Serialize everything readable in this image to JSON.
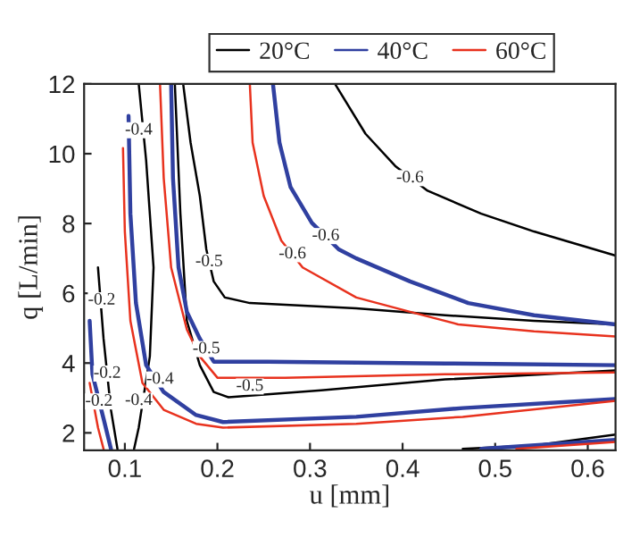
{
  "chart_data": {
    "type": "line",
    "xlabel": "u [mm]",
    "ylabel": "q [L/min]",
    "xlim": [
      0.056,
      0.63
    ],
    "ylim": [
      1.5,
      12
    ],
    "xticks": [
      0.1,
      0.2,
      0.3,
      0.4,
      0.5,
      0.6
    ],
    "yticks": [
      2,
      4,
      6,
      8,
      10,
      12
    ],
    "grid": false,
    "legend": "top",
    "marker": "none",
    "line_style": "solid",
    "series": [
      {
        "name": "20°C",
        "color": "#000000",
        "x": [
          0.327,
          0.36,
          0.392,
          0.427,
          0.485,
          0.542,
          0.63,
          null,
          0.163,
          0.171,
          0.181,
          0.188,
          0.196,
          0.208,
          0.235,
          0.35,
          0.446,
          0.542,
          0.63,
          null,
          0.154,
          0.16,
          0.167,
          0.181,
          0.196,
          0.212,
          0.312,
          0.446,
          0.63,
          null,
          0.115,
          0.123,
          0.131,
          0.127,
          0.115,
          0.11,
          null,
          0.071,
          0.077,
          0.085,
          0.092,
          null,
          0.465,
          0.542,
          0.63
        ],
        "values": [
          12,
          10.57,
          9.65,
          8.94,
          8.28,
          7.77,
          7.08,
          null,
          12,
          10.32,
          8.79,
          7.26,
          6.34,
          5.88,
          5.72,
          5.57,
          5.37,
          5.21,
          5.11,
          null,
          12,
          8.28,
          5.21,
          3.94,
          3.17,
          3.02,
          3.22,
          3.53,
          3.79,
          null,
          12,
          9.81,
          6.74,
          4.19,
          2.15,
          1.54,
          null,
          6.74,
          4.7,
          2.66,
          1.54,
          null,
          1.54,
          1.64,
          1.95
        ]
      },
      {
        "name": "40°C",
        "color": "#3040a0",
        "x": [
          0.26,
          0.267,
          0.279,
          0.302,
          0.331,
          0.35,
          0.408,
          0.471,
          0.542,
          0.63,
          null,
          0.15,
          0.152,
          0.158,
          0.167,
          0.181,
          0.196,
          0.254,
          0.446,
          0.63,
          null,
          0.104,
          0.106,
          0.112,
          0.123,
          0.142,
          0.177,
          0.206,
          0.35,
          0.465,
          0.63,
          null,
          0.062,
          0.065,
          0.077,
          0.085,
          null,
          0.485,
          0.63
        ],
        "values": [
          12,
          10.32,
          9.04,
          8.02,
          7.26,
          7.0,
          6.34,
          5.72,
          5.37,
          5.11,
          null,
          12,
          9.3,
          6.74,
          5.47,
          4.7,
          4.04,
          4.04,
          3.99,
          3.94,
          null,
          11.08,
          8.28,
          5.72,
          3.94,
          3.17,
          2.51,
          2.31,
          2.46,
          2.71,
          2.97,
          null,
          5.21,
          3.68,
          2.41,
          1.54,
          null,
          1.54,
          1.8
        ]
      },
      {
        "name": "60°C",
        "color": "#e8321e",
        "x": [
          0.235,
          0.238,
          0.25,
          0.269,
          0.292,
          0.35,
          0.408,
          0.46,
          0.542,
          0.63,
          null,
          0.138,
          0.142,
          0.15,
          0.167,
          0.181,
          0.2,
          0.273,
          0.446,
          0.63,
          null,
          0.098,
          0.1,
          0.106,
          0.119,
          0.142,
          0.177,
          0.206,
          0.35,
          0.465,
          0.63,
          null,
          0.062,
          0.071,
          0.077,
          null,
          0.523,
          0.63
        ],
        "values": [
          12,
          10.32,
          8.79,
          7.51,
          6.74,
          5.88,
          5.47,
          5.11,
          4.91,
          4.76,
          null,
          12,
          9.3,
          6.74,
          4.96,
          4.19,
          3.58,
          3.58,
          3.68,
          3.73,
          null,
          10.16,
          7.77,
          5.21,
          3.43,
          2.66,
          2.26,
          2.15,
          2.26,
          2.46,
          2.92,
          null,
          3.43,
          2.15,
          1.54,
          null,
          1.54,
          1.74
        ]
      }
    ],
    "annotations": [
      {
        "text": "-0.6",
        "x": 0.408,
        "y": 9.3
      },
      {
        "text": "-0.6",
        "x": 0.317,
        "y": 7.64
      },
      {
        "text": "-0.6",
        "x": 0.281,
        "y": 7.12
      },
      {
        "text": "-0.5",
        "x": 0.191,
        "y": 6.9
      },
      {
        "text": "-0.5",
        "x": 0.188,
        "y": 4.4
      },
      {
        "text": "-0.5",
        "x": 0.235,
        "y": 3.33
      },
      {
        "text": "-0.4",
        "x": 0.115,
        "y": 10.67
      },
      {
        "text": "-0.4",
        "x": 0.138,
        "y": 3.53
      },
      {
        "text": "-0.4",
        "x": 0.115,
        "y": 2.92
      },
      {
        "text": "-0.2",
        "x": 0.075,
        "y": 5.8
      },
      {
        "text": "-0.2",
        "x": 0.081,
        "y": 3.7
      },
      {
        "text": "-0.2",
        "x": 0.072,
        "y": 2.9
      }
    ]
  }
}
